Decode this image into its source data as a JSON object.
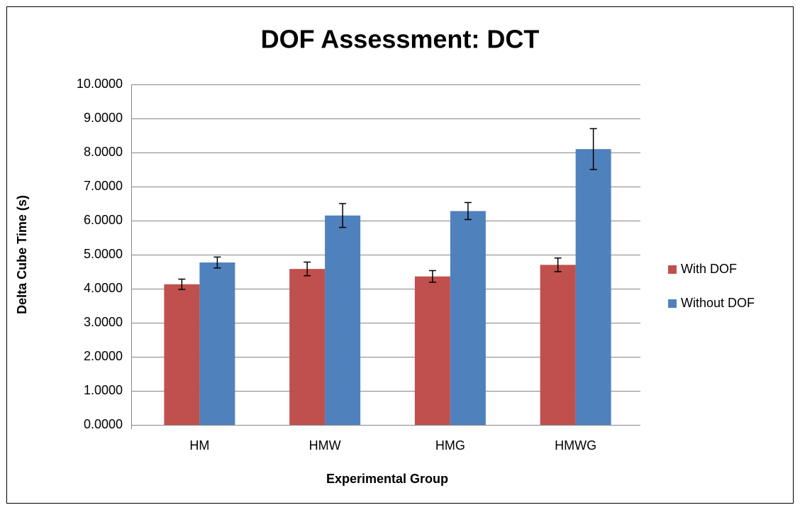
{
  "chart_data": {
    "type": "bar",
    "title": "DOF Assessment: DCT",
    "x_label": "Experimental Group",
    "y_label": "Delta Cube Time (s)",
    "categories": [
      "HM",
      "HMW",
      "HMG",
      "HMWG"
    ],
    "series": [
      {
        "name": "With DOF",
        "color": "#c0504d",
        "values": [
          4.13,
          4.58,
          4.36,
          4.7
        ],
        "errors": [
          0.15,
          0.2,
          0.17,
          0.2
        ]
      },
      {
        "name": "Without DOF",
        "color": "#4f81bd",
        "values": [
          4.77,
          6.15,
          6.28,
          8.1
        ],
        "errors": [
          0.16,
          0.35,
          0.25,
          0.6
        ]
      }
    ],
    "ylim": [
      0,
      10
    ],
    "yticks": [
      {
        "value": 0,
        "label": "0.0000"
      },
      {
        "value": 1,
        "label": "1.0000"
      },
      {
        "value": 2,
        "label": "2.0000"
      },
      {
        "value": 3,
        "label": "3.0000"
      },
      {
        "value": 4,
        "label": "4.0000"
      },
      {
        "value": 5,
        "label": "5.0000"
      },
      {
        "value": 6,
        "label": "6.0000"
      },
      {
        "value": 7,
        "label": "7.0000"
      },
      {
        "value": 8,
        "label": "8.0000"
      },
      {
        "value": 9,
        "label": "9.0000"
      },
      {
        "value": 10,
        "label": "10.0000"
      }
    ],
    "grid": true,
    "legend": "right"
  }
}
